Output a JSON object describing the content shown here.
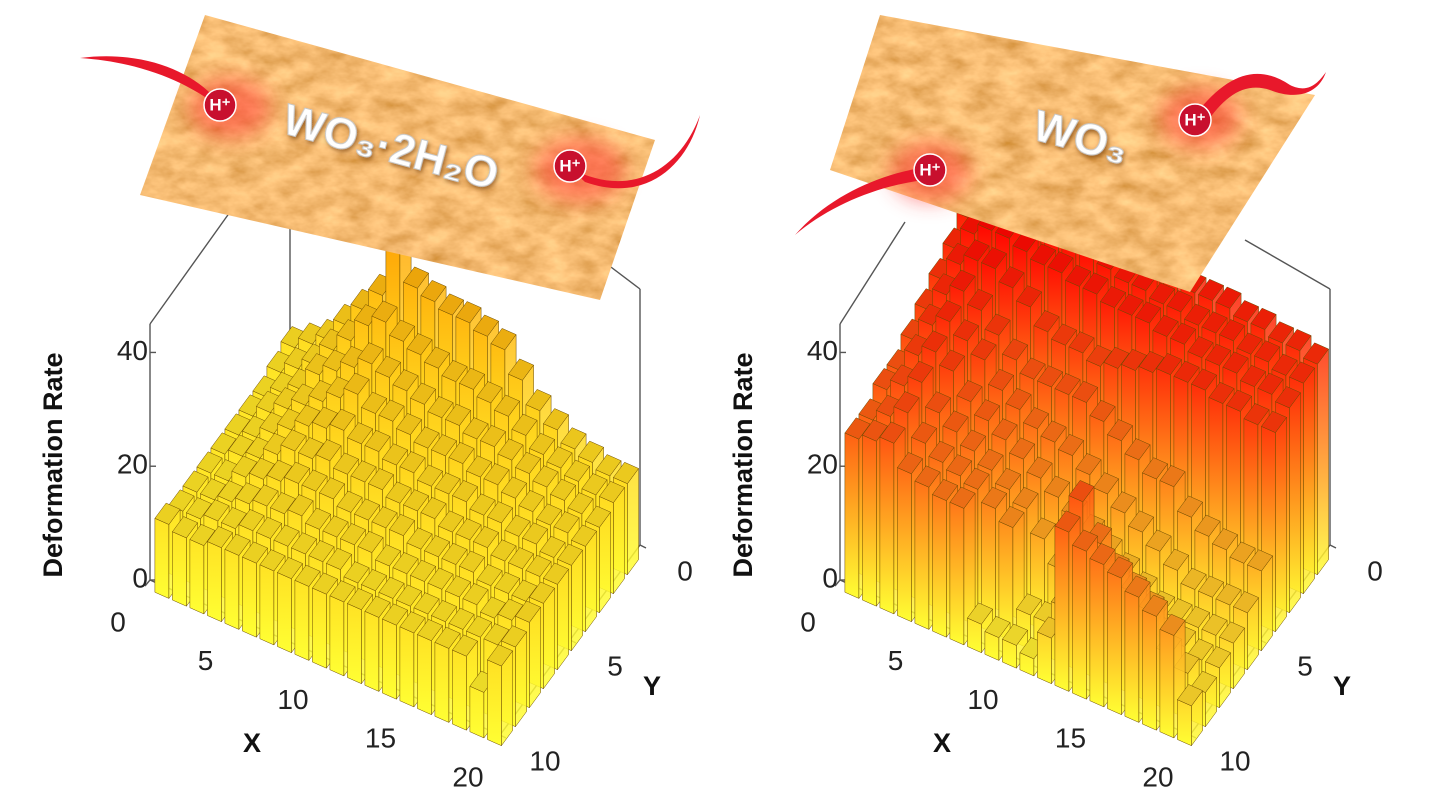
{
  "chart_data": [
    {
      "type": "bar3d",
      "title": "WO₃·2H₂O",
      "annotations": [
        "H⁺",
        "H⁺"
      ],
      "zlabel": "Deformation Rate",
      "xlabel": "X",
      "ylabel": "Y",
      "xlim": [
        0,
        20
      ],
      "ylim": [
        0,
        10
      ],
      "zlim": [
        0,
        45
      ],
      "xticks": [
        0,
        5,
        10,
        15,
        20
      ],
      "yticks": [
        0,
        5,
        10
      ],
      "zticks": [
        0,
        20,
        40
      ],
      "colormap": [
        "#ffff33",
        "#ff9a00"
      ],
      "x": [
        1,
        2,
        3,
        4,
        5,
        6,
        7,
        8,
        9,
        10,
        11,
        12,
        13,
        14,
        15,
        16,
        17,
        18,
        19,
        20
      ],
      "y": [
        1,
        2,
        3,
        4,
        5,
        6,
        7,
        8,
        9,
        10
      ],
      "values": [
        [
          14,
          16,
          18,
          22,
          26,
          30,
          40,
          34,
          33,
          32,
          32,
          31,
          30,
          26,
          22,
          20,
          18,
          17,
          16,
          16
        ],
        [
          13,
          15,
          17,
          21,
          24,
          28,
          30,
          28,
          27,
          26,
          25,
          25,
          24,
          23,
          21,
          19,
          18,
          17,
          16,
          16
        ],
        [
          12,
          14,
          16,
          20,
          22,
          24,
          26,
          25,
          24,
          23,
          22,
          22,
          21,
          21,
          20,
          19,
          18,
          17,
          16,
          15
        ],
        [
          12,
          14,
          16,
          18,
          20,
          22,
          24,
          22,
          22,
          21,
          20,
          20,
          20,
          19,
          19,
          18,
          17,
          16,
          16,
          15
        ],
        [
          12,
          13,
          15,
          17,
          19,
          20,
          21,
          20,
          20,
          19,
          19,
          18,
          18,
          18,
          17,
          17,
          16,
          16,
          15,
          15
        ],
        [
          12,
          13,
          14,
          16,
          18,
          18,
          19,
          18,
          18,
          18,
          17,
          17,
          17,
          16,
          16,
          16,
          15,
          15,
          15,
          15
        ],
        [
          12,
          12,
          14,
          15,
          16,
          17,
          17,
          17,
          16,
          16,
          16,
          16,
          15,
          15,
          15,
          15,
          14,
          14,
          14,
          15
        ],
        [
          12,
          12,
          13,
          14,
          15,
          15,
          16,
          15,
          15,
          15,
          15,
          14,
          14,
          14,
          14,
          14,
          14,
          13,
          14,
          15
        ],
        [
          12,
          12,
          13,
          13,
          14,
          14,
          14,
          14,
          14,
          14,
          13,
          13,
          13,
          13,
          13,
          13,
          13,
          13,
          13,
          14
        ],
        [
          13,
          12,
          12,
          13,
          13,
          13,
          13,
          13,
          13,
          13,
          13,
          13,
          13,
          13,
          13,
          13,
          13,
          13,
          8,
          14
        ]
      ]
    },
    {
      "type": "bar3d",
      "title": "WO₃",
      "annotations": [
        "H⁺",
        "H⁺"
      ],
      "zlabel": "Deformation Rate",
      "xlabel": "X",
      "ylabel": "Y",
      "xlim": [
        0,
        20
      ],
      "ylim": [
        0,
        10
      ],
      "zlim": [
        0,
        45
      ],
      "xticks": [
        0,
        5,
        10,
        15,
        20
      ],
      "yticks": [
        0,
        5,
        10
      ],
      "zticks": [
        0,
        20,
        40
      ],
      "colormap": [
        "#ffff33",
        "#ff0000"
      ],
      "x": [
        1,
        2,
        3,
        4,
        5,
        6,
        7,
        8,
        9,
        10,
        11,
        12,
        13,
        14,
        15,
        16,
        17,
        18,
        19,
        20
      ],
      "y": [
        1,
        2,
        3,
        4,
        5,
        6,
        7,
        8,
        9,
        10
      ],
      "values": [
        [
          42,
          46,
          48,
          47,
          46,
          45,
          44,
          43,
          42,
          42,
          41,
          41,
          40,
          40,
          40,
          39,
          39,
          38,
          38,
          37
        ],
        [
          40,
          44,
          47,
          46,
          45,
          44,
          43,
          43,
          42,
          41,
          41,
          40,
          40,
          39,
          39,
          39,
          38,
          38,
          37,
          37
        ],
        [
          38,
          42,
          44,
          44,
          43,
          42,
          42,
          41,
          41,
          40,
          40,
          40,
          39,
          39,
          38,
          38,
          38,
          37,
          37,
          36
        ],
        [
          36,
          40,
          42,
          42,
          40,
          38,
          35,
          34,
          34,
          33,
          34,
          35,
          36,
          37,
          37,
          37,
          36,
          36,
          35,
          35
        ],
        [
          34,
          38,
          40,
          38,
          35,
          32,
          30,
          30,
          30,
          30,
          28,
          26,
          24,
          22,
          22,
          18,
          16,
          15,
          14,
          14
        ],
        [
          32,
          36,
          38,
          36,
          34,
          30,
          28,
          26,
          25,
          24,
          22,
          20,
          18,
          16,
          14,
          12,
          10,
          10,
          10,
          10
        ],
        [
          30,
          34,
          36,
          34,
          30,
          28,
          26,
          24,
          22,
          20,
          18,
          16,
          14,
          12,
          10,
          8,
          8,
          8,
          8,
          8
        ],
        [
          30,
          32,
          34,
          30,
          28,
          26,
          24,
          22,
          20,
          16,
          12,
          10,
          10,
          10,
          10,
          8,
          8,
          8,
          7,
          7
        ],
        [
          28,
          30,
          32,
          28,
          26,
          25,
          24,
          22,
          20,
          6,
          6,
          10,
          30,
          24,
          20,
          18,
          16,
          10,
          8,
          6
        ],
        [
          28,
          29,
          30,
          26,
          25,
          24,
          24,
          5,
          4,
          4,
          3,
          8,
          28,
          26,
          25,
          24,
          22,
          20,
          18,
          7
        ]
      ]
    }
  ]
}
